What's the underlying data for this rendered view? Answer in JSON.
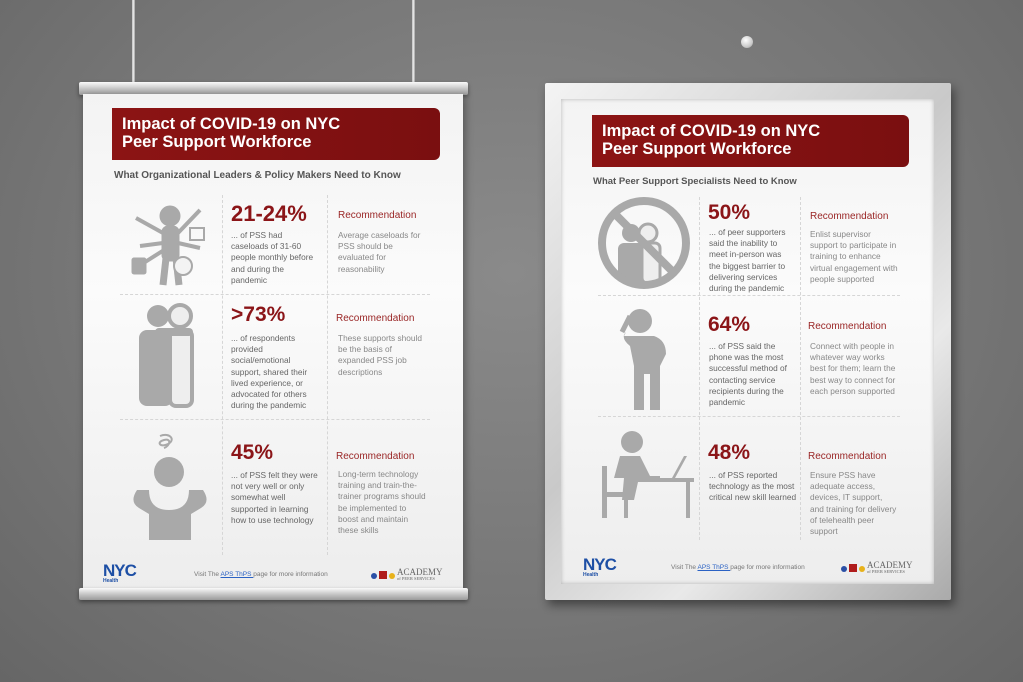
{
  "colors": {
    "brand_red": "#8b1518",
    "nyc_blue": "#1d4fa5",
    "icon_gray": "#a9a9a9"
  },
  "posters": [
    {
      "title_line1": "Impact of COVID-19 on NYC",
      "title_line2": "Peer Support Workforce",
      "subtitle": "What Organizational Leaders & Policy Makers Need to Know",
      "rows": [
        {
          "icon": "overwhelmed-worker-icon",
          "stat": "21-24%",
          "desc": "... of PSS had caseloads of 31-60 people monthly before and during the pandemic",
          "rec_heading": "Recommendation",
          "rec": "Average caseloads for PSS should be evaluated for reasonability"
        },
        {
          "icon": "supporting-people-icon",
          "stat": ">73%",
          "desc": "... of respondents provided social/emotional support, shared their lived experience, or advocated for others during the pandemic",
          "rec_heading": "Recommendation",
          "rec": "These supports should be the basis of expanded PSS job descriptions"
        },
        {
          "icon": "stressed-person-icon",
          "stat": "45%",
          "desc": "... of PSS felt they were not very well or only somewhat well supported in learning how to use technology",
          "rec_heading": "Recommendation",
          "rec": "Long-term technology training and train-the-trainer programs should be implemented to boost and maintain these skills"
        }
      ],
      "footer": {
        "logo": "NYC",
        "logo_sub": "Health",
        "visit_pre": "Visit The ",
        "link": "APS ThPS ",
        "visit_post": "page for more information",
        "academy": "ACADEMY",
        "academy_sub": "of PEER SERVICES"
      }
    },
    {
      "title_line1": "Impact of COVID-19 on NYC",
      "title_line2": "Peer Support Workforce",
      "subtitle": "What Peer Support Specialists Need to Know",
      "rows": [
        {
          "icon": "no-in-person-icon",
          "stat": "50%",
          "desc": "... of peer supporters said the inability to meet in-person was the biggest barrier to delivering services during the pandemic",
          "rec_heading": "Recommendation",
          "rec": "Enlist supervisor support to participate in training to enhance virtual engagement with people supported"
        },
        {
          "icon": "person-on-phone-icon",
          "stat": "64%",
          "desc": "... of PSS said the phone was the most successful method of contacting service recipients during the pandemic",
          "rec_heading": "Recommendation",
          "rec": "Connect with people in whatever way works best for them; learn the best way to connect for each person supported"
        },
        {
          "icon": "person-at-laptop-icon",
          "stat": "48%",
          "desc": "... of PSS reported technology as the most critical new skill learned",
          "rec_heading": "Recommendation",
          "rec": "Ensure PSS have adequate access, devices, IT support, and training for delivery of telehealth peer support"
        }
      ],
      "footer": {
        "logo": "NYC",
        "logo_sub": "Health",
        "visit_pre": "Visit The ",
        "link": "APS ThPS ",
        "visit_post": "page for more information",
        "academy": "ACADEMY",
        "academy_sub": "of PEER SERVICES"
      }
    }
  ]
}
